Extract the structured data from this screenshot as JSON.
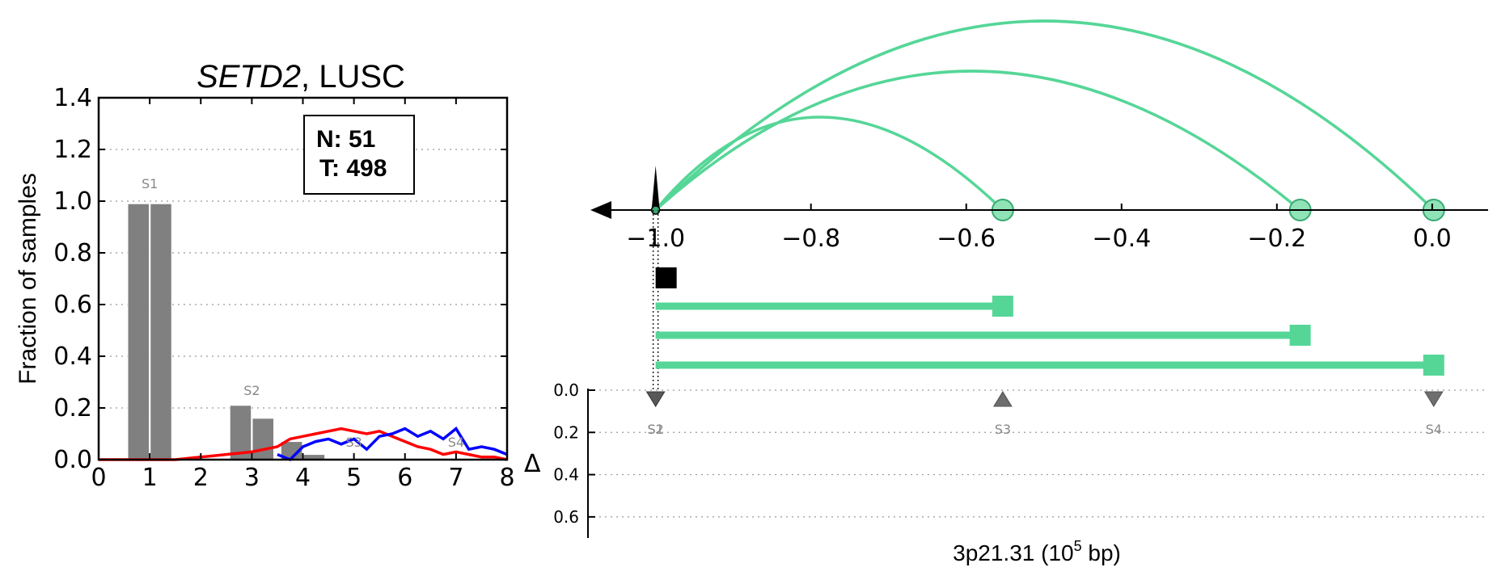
{
  "colors": {
    "bar": "#808080",
    "red_series": "#ff0000",
    "blue_series": "#0000ff",
    "arc": "#55d697",
    "arc_fill": "#8fe3b7",
    "marker": "#555555"
  },
  "chart_data": [
    {
      "type": "bar",
      "title_gene": "SETD2",
      "title_rest": ", LUSC",
      "ylabel": "Fraction of samples",
      "xlim": [
        0,
        8
      ],
      "ylim": [
        0,
        1.4
      ],
      "xticks": [
        "0",
        "1",
        "2",
        "3",
        "4",
        "5",
        "6",
        "7",
        "8"
      ],
      "yticks": [
        "0.0",
        "0.2",
        "0.4",
        "0.6",
        "0.8",
        "1.0",
        "1.2",
        "1.4"
      ],
      "grid": "horizontal dotted",
      "legend_box": {
        "n": "N: 51",
        "t": "T: 498",
        "position": "top-right"
      },
      "bars": [
        {
          "x": 0.78,
          "value": 0.99
        },
        {
          "x": 1.22,
          "value": 0.99
        },
        {
          "x": 2.78,
          "value": 0.21
        },
        {
          "x": 3.22,
          "value": 0.16
        },
        {
          "x": 3.78,
          "value": 0.07
        },
        {
          "x": 4.22,
          "value": 0.02
        }
      ],
      "bar_labels": [
        {
          "text": "S1",
          "x": 1.0,
          "y": 1.05
        },
        {
          "text": "S2",
          "x": 3.0,
          "y": 0.25
        },
        {
          "text": "S3",
          "x": 5.0,
          "y": 0.05
        },
        {
          "text": "S4",
          "x": 7.0,
          "y": 0.05
        }
      ],
      "series": [
        {
          "color_key": "red_series",
          "x": [
            0,
            0.5,
            1.0,
            1.5,
            2.0,
            2.5,
            3.0,
            3.25,
            3.5,
            3.75,
            4.0,
            4.25,
            4.5,
            4.75,
            5.0,
            5.25,
            5.5,
            5.75,
            6.0,
            6.25,
            6.5,
            6.75,
            7.0,
            7.25,
            7.5,
            7.75,
            8.0
          ],
          "y": [
            0.0,
            0.0,
            0.0,
            0.0,
            0.01,
            0.02,
            0.03,
            0.04,
            0.05,
            0.08,
            0.09,
            0.1,
            0.11,
            0.12,
            0.11,
            0.1,
            0.11,
            0.09,
            0.07,
            0.05,
            0.04,
            0.02,
            0.03,
            0.02,
            0.01,
            0.01,
            0.0
          ]
        },
        {
          "color_key": "blue_series",
          "x": [
            3.5,
            3.75,
            4.0,
            4.25,
            4.5,
            4.75,
            5.0,
            5.25,
            5.5,
            5.75,
            6.0,
            6.25,
            6.5,
            6.75,
            7.0,
            7.25,
            7.5,
            7.75,
            8.0
          ],
          "y": [
            0.02,
            0.0,
            0.05,
            0.07,
            0.08,
            0.06,
            0.08,
            0.04,
            0.09,
            0.1,
            0.12,
            0.09,
            0.11,
            0.08,
            0.12,
            0.04,
            0.05,
            0.04,
            0.02
          ]
        }
      ]
    },
    {
      "type": "arc",
      "xlabel_main": "3p21.31 (10",
      "xlabel_sup": "5",
      "xlabel_tail": " bp)",
      "xlim": [
        -1.084,
        0.072
      ],
      "xticks": [
        {
          "value": -1.0,
          "label": "−1.0"
        },
        {
          "value": -0.8,
          "label": "−0.8"
        },
        {
          "value": -0.6,
          "label": "−0.6"
        },
        {
          "value": -0.4,
          "label": "−0.4"
        },
        {
          "value": -0.2,
          "label": "−0.2"
        },
        {
          "value": 0.0,
          "label": "0.0"
        }
      ],
      "origin": -1.0,
      "arcs": [
        {
          "end": -0.553,
          "peak": -0.8
        },
        {
          "end": -0.17,
          "peak": -0.6
        },
        {
          "end": 0.002,
          "peak": -0.5
        }
      ],
      "segments": [
        {
          "start": -1.0,
          "end": -0.553
        },
        {
          "start": -1.0,
          "end": -0.17
        },
        {
          "start": -1.0,
          "end": 0.002
        }
      ],
      "delta_label": "Δ",
      "delta_ticks": [
        "0.0",
        "0.2",
        "0.4",
        "0.6"
      ],
      "delta_lim": [
        0,
        0.7
      ],
      "markers": [
        {
          "label": "S1",
          "x": -1.0,
          "direction": "down"
        },
        {
          "label": "S2",
          "x": -1.0,
          "direction": "down"
        },
        {
          "label": "S3",
          "x": -0.553,
          "direction": "up"
        },
        {
          "label": "S4",
          "x": 0.002,
          "direction": "down"
        }
      ]
    }
  ]
}
